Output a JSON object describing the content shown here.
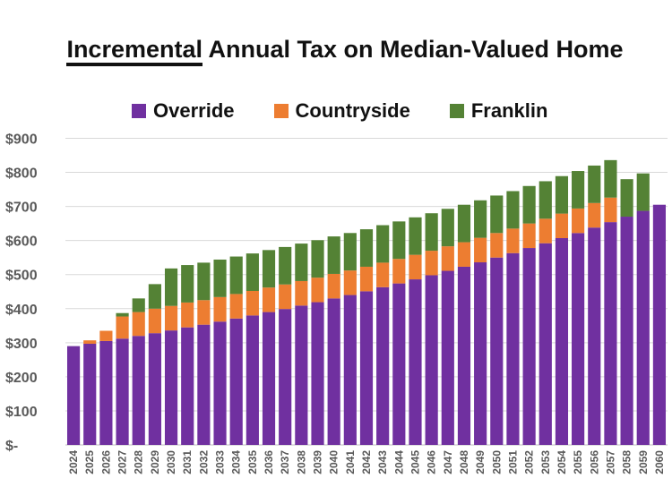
{
  "title": {
    "emphasis": "Incremental",
    "rest": " Annual Tax on Median-Valued Home"
  },
  "chart_data": {
    "type": "bar",
    "stacked": true,
    "title": "Incremental Annual Tax on Median-Valued Home",
    "xlabel": "",
    "ylabel": "",
    "ylim": [
      0,
      900
    ],
    "y_ticks": [
      {
        "value": 0,
        "label": "$-"
      },
      {
        "value": 100,
        "label": "$100"
      },
      {
        "value": 200,
        "label": "$200"
      },
      {
        "value": 300,
        "label": "$300"
      },
      {
        "value": 400,
        "label": "$400"
      },
      {
        "value": 500,
        "label": "$500"
      },
      {
        "value": 600,
        "label": "$600"
      },
      {
        "value": 700,
        "label": "$700"
      },
      {
        "value": 800,
        "label": "$800"
      },
      {
        "value": 900,
        "label": "$900"
      }
    ],
    "grid": true,
    "legend_position": "top",
    "categories": [
      "2024",
      "2025",
      "2026",
      "2027",
      "2028",
      "2029",
      "2030",
      "2031",
      "2032",
      "2033",
      "2034",
      "2035",
      "2036",
      "2037",
      "2038",
      "2039",
      "2040",
      "2041",
      "2042",
      "2043",
      "2044",
      "2045",
      "2046",
      "2047",
      "2048",
      "2049",
      "2050",
      "2051",
      "2052",
      "2053",
      "2054",
      "2055",
      "2056",
      "2057",
      "2058",
      "2059",
      "2060"
    ],
    "series": [
      {
        "name": "Override",
        "color": "#7030A0",
        "values": [
          290,
          297,
          305,
          312,
          320,
          328,
          336,
          345,
          353,
          362,
          371,
          380,
          390,
          399,
          409,
          419,
          430,
          440,
          451,
          463,
          474,
          486,
          498,
          511,
          523,
          536,
          550,
          563,
          578,
          592,
          607,
          622,
          638,
          654,
          670,
          687,
          705
        ]
      },
      {
        "name": "Countryside",
        "color": "#ED7D31",
        "values": [
          0,
          10,
          30,
          65,
          70,
          72,
          72,
          73,
          72,
          72,
          72,
          72,
          72,
          72,
          72,
          72,
          72,
          72,
          72,
          72,
          72,
          72,
          72,
          72,
          72,
          72,
          72,
          72,
          72,
          72,
          72,
          72,
          72,
          72,
          0,
          0,
          0
        ]
      },
      {
        "name": "Franklin",
        "color": "#548235",
        "values": [
          0,
          0,
          0,
          10,
          40,
          72,
          110,
          110,
          110,
          110,
          110,
          110,
          110,
          110,
          110,
          110,
          110,
          110,
          110,
          110,
          110,
          110,
          110,
          110,
          110,
          110,
          110,
          110,
          110,
          110,
          110,
          110,
          110,
          110,
          110,
          110,
          0
        ]
      }
    ]
  }
}
